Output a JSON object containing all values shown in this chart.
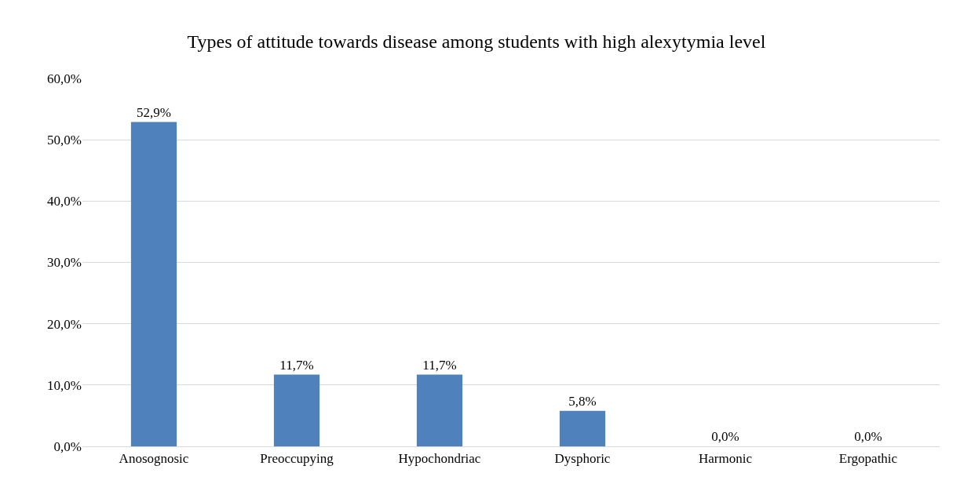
{
  "chart_data": {
    "type": "bar",
    "title": "Types of attitude towards disease among students with high alexytymia level",
    "categories": [
      "Anosognosic",
      "Preoccupying",
      "Hypochondriac",
      "Dysphoric",
      "Harmonic",
      "Ergopathic"
    ],
    "values": [
      52.9,
      11.7,
      11.7,
      5.8,
      0,
      0
    ],
    "value_labels": [
      "52,9%",
      "11,7%",
      "11,7%",
      "5,8%",
      "0,0%",
      "0,0%"
    ],
    "color": "#4f81bd",
    "ylim": [
      0,
      60
    ],
    "yticks": [
      {
        "value": 0,
        "label": "0,0%"
      },
      {
        "value": 10,
        "label": "10,0%"
      },
      {
        "value": 20,
        "label": "20,0%"
      },
      {
        "value": 30,
        "label": "30,0%"
      },
      {
        "value": 40,
        "label": "40,0%"
      },
      {
        "value": 50,
        "label": "50,0%"
      },
      {
        "value": 60,
        "label": "60,0%"
      }
    ],
    "grid": "y",
    "legend": false
  }
}
